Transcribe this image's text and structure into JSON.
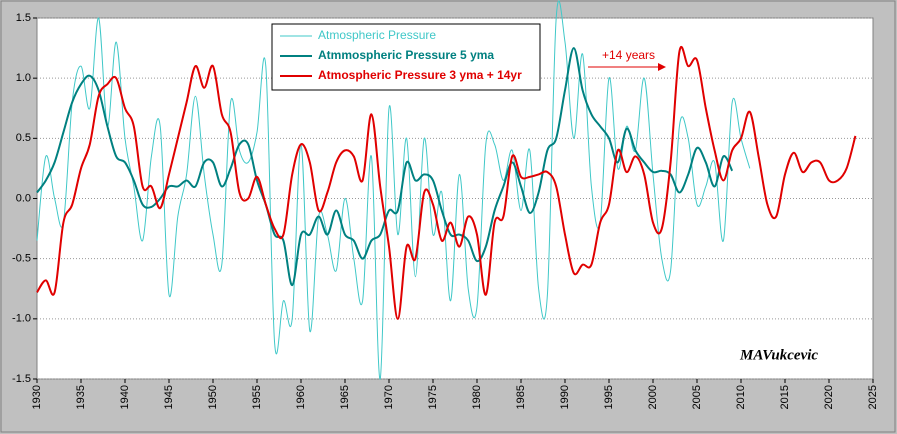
{
  "chart_data": {
    "type": "line",
    "x": [
      1930,
      1931,
      1932,
      1933,
      1934,
      1935,
      1936,
      1937,
      1938,
      1939,
      1940,
      1941,
      1942,
      1943,
      1944,
      1945,
      1946,
      1947,
      1948,
      1949,
      1950,
      1951,
      1952,
      1953,
      1954,
      1955,
      1956,
      1957,
      1958,
      1959,
      1960,
      1961,
      1962,
      1963,
      1964,
      1965,
      1966,
      1967,
      1968,
      1969,
      1970,
      1971,
      1972,
      1973,
      1974,
      1975,
      1976,
      1977,
      1978,
      1979,
      1980,
      1981,
      1982,
      1983,
      1984,
      1985,
      1986,
      1987,
      1988,
      1989,
      1990,
      1991,
      1992,
      1993,
      1994,
      1995,
      1996,
      1997,
      1998,
      1999,
      2000,
      2001,
      2002,
      2003,
      2004,
      2005,
      2006,
      2007,
      2008,
      2009,
      2010,
      2011,
      2012,
      2013,
      2014,
      2015,
      2016,
      2017,
      2018,
      2019,
      2020,
      2021,
      2022,
      2023
    ],
    "series": [
      {
        "name": "Atmospheric Pressure",
        "color": "#40c8c8",
        "values": [
          -0.35,
          0.35,
          0.0,
          -0.2,
          0.8,
          1.1,
          0.75,
          1.5,
          0.6,
          1.3,
          0.5,
          0.1,
          -0.35,
          0.35,
          0.6,
          -0.8,
          -0.15,
          0.2,
          0.85,
          0.2,
          -0.3,
          -0.55,
          0.8,
          0.4,
          0.3,
          0.55,
          1.1,
          -1.2,
          -0.85,
          -1.0,
          0.45,
          -1.1,
          -0.15,
          -0.3,
          -0.6,
          0.0,
          -0.5,
          -0.85,
          0.35,
          -1.5,
          0.75,
          -0.3,
          0.5,
          -0.65,
          0.5,
          -0.3,
          0.05,
          -0.85,
          0.2,
          -0.75,
          -0.9,
          0.45,
          0.45,
          0.15,
          0.4,
          -0.1,
          0.4,
          -0.75,
          -0.8,
          1.5,
          1.3,
          0.5,
          1.2,
          0.1,
          -0.2,
          1.0,
          0.25,
          0.6,
          0.4,
          1.0,
          0.2,
          -0.5,
          -0.6,
          0.6,
          0.5,
          -0.05,
          0.1,
          0.3,
          -0.35,
          0.8,
          0.5,
          0.25,
          null,
          null,
          null,
          null,
          null,
          null,
          null,
          null,
          null,
          null,
          null,
          null
        ]
      },
      {
        "name": "Atmmospheric Pressure 5 yma",
        "color": "#008080",
        "values": [
          0.05,
          0.15,
          0.3,
          0.55,
          0.8,
          0.95,
          1.02,
          0.9,
          0.6,
          0.35,
          0.3,
          0.15,
          -0.05,
          -0.07,
          0.0,
          0.1,
          0.1,
          0.15,
          0.1,
          0.3,
          0.3,
          0.1,
          0.25,
          0.45,
          0.45,
          0.15,
          -0.05,
          -0.3,
          -0.35,
          -0.72,
          -0.3,
          -0.3,
          -0.15,
          -0.3,
          -0.1,
          -0.3,
          -0.35,
          -0.5,
          -0.35,
          -0.3,
          -0.1,
          -0.1,
          0.3,
          0.15,
          0.2,
          0.15,
          -0.1,
          -0.3,
          -0.3,
          -0.35,
          -0.52,
          -0.4,
          -0.1,
          0.1,
          0.3,
          0.1,
          -0.12,
          0.05,
          0.4,
          0.5,
          0.9,
          1.25,
          0.9,
          0.7,
          0.6,
          0.5,
          0.3,
          0.58,
          0.4,
          0.3,
          0.22,
          0.23,
          0.2,
          0.05,
          0.2,
          0.42,
          0.3,
          0.1,
          0.35,
          0.23,
          null,
          null,
          null,
          null,
          null,
          null,
          null,
          null,
          null,
          null,
          null,
          null,
          null,
          null
        ]
      },
      {
        "name": "Atmospheric Pressure 3 yma + 14yr",
        "color": "#e00000",
        "values": [
          -0.78,
          -0.68,
          -0.78,
          -0.2,
          -0.05,
          0.25,
          0.45,
          0.85,
          0.95,
          1.0,
          0.75,
          0.6,
          0.1,
          0.1,
          -0.08,
          0.2,
          0.5,
          0.8,
          1.1,
          0.92,
          1.1,
          0.7,
          0.55,
          0.05,
          0.0,
          0.18,
          -0.05,
          -0.25,
          -0.3,
          0.2,
          0.45,
          0.3,
          -0.1,
          0.05,
          0.3,
          0.4,
          0.35,
          0.15,
          0.7,
          0.1,
          -0.4,
          -1.0,
          -0.4,
          -0.5,
          0.05,
          -0.05,
          -0.35,
          -0.2,
          -0.4,
          -0.15,
          -0.3,
          -0.8,
          -0.2,
          -0.15,
          0.35,
          0.18,
          0.18,
          0.2,
          0.22,
          0.1,
          -0.3,
          -0.62,
          -0.55,
          -0.55,
          -0.2,
          -0.05,
          0.4,
          0.22,
          0.35,
          0.2,
          -0.2,
          -0.25,
          0.3,
          1.22,
          1.1,
          1.15,
          0.75,
          0.4,
          0.15,
          0.4,
          0.5,
          0.72,
          0.35,
          -0.05,
          -0.15,
          0.2,
          0.38,
          0.22,
          0.3,
          0.3,
          0.15,
          0.15,
          0.25,
          0.52
        ]
      }
    ],
    "xlim": [
      1930,
      2025
    ],
    "xticks": [
      1930,
      1935,
      1940,
      1945,
      1950,
      1955,
      1960,
      1965,
      1970,
      1975,
      1980,
      1985,
      1990,
      1995,
      2000,
      2005,
      2010,
      2015,
      2020,
      2025
    ],
    "ylim": [
      -1.5,
      1.5
    ],
    "yticks": [
      -1.5,
      {
        "value": -1,
        "label": "-1.0"
      },
      -0.5,
      {
        "value": 0,
        "label": "0.0"
      },
      0.5,
      {
        "value": 1,
        "label": "1.0"
      },
      1.5
    ],
    "grid": true,
    "annotations": [
      "+14 years",
      "MAVukcevic"
    ]
  }
}
